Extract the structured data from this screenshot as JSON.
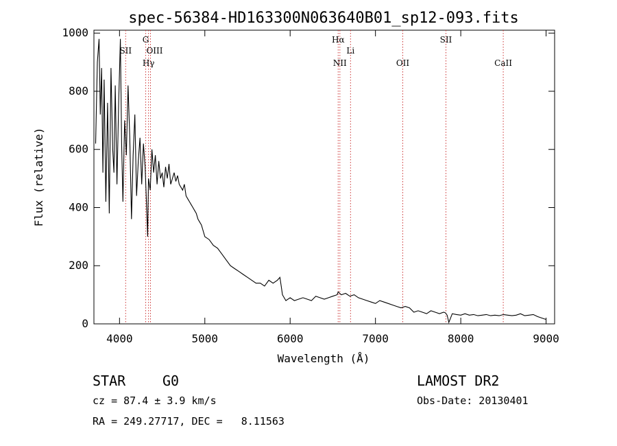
{
  "chart_data": {
    "type": "line",
    "title": "spec-56384-HD163300N063640B01_sp12-093.fits",
    "xlabel": "Wavelength (Å)",
    "ylabel": "Flux (relative)",
    "xlim": [
      3700,
      9100
    ],
    "ylim": [
      0,
      1010
    ],
    "x_ticks": [
      4000,
      5000,
      6000,
      7000,
      8000,
      9000
    ],
    "y_ticks": [
      0,
      200,
      400,
      600,
      800,
      1000
    ],
    "grid": false,
    "line_color": "#000000",
    "marker_line_color": "#cc3333",
    "series": [
      {
        "x": [
          3720,
          3740,
          3760,
          3775,
          3790,
          3805,
          3820,
          3840,
          3860,
          3880,
          3900,
          3920,
          3935,
          3950,
          3970,
          3990,
          4010,
          4025,
          4040,
          4060,
          4080,
          4100,
          4120,
          4140,
          4160,
          4180,
          4200,
          4220,
          4240,
          4260,
          4280,
          4300,
          4320,
          4330,
          4340,
          4360,
          4380,
          4400,
          4420,
          4440,
          4460,
          4480,
          4500,
          4520,
          4540,
          4560,
          4580,
          4600,
          4620,
          4640,
          4660,
          4680,
          4700,
          4720,
          4740,
          4760,
          4780,
          4800,
          4820,
          4840,
          4860,
          4880,
          4900,
          4920,
          4940,
          4960,
          4980,
          5000,
          5050,
          5100,
          5150,
          5200,
          5250,
          5300,
          5350,
          5400,
          5450,
          5500,
          5550,
          5600,
          5650,
          5700,
          5750,
          5800,
          5850,
          5880,
          5895,
          5910,
          5950,
          6000,
          6050,
          6100,
          6150,
          6200,
          6250,
          6300,
          6350,
          6400,
          6450,
          6500,
          6550,
          6563,
          6600,
          6650,
          6700,
          6750,
          6800,
          6850,
          6900,
          6950,
          7000,
          7050,
          7100,
          7150,
          7200,
          7250,
          7300,
          7350,
          7400,
          7450,
          7500,
          7550,
          7600,
          7650,
          7700,
          7750,
          7800,
          7820,
          7840,
          7860,
          7900,
          7950,
          8000,
          8050,
          8100,
          8150,
          8200,
          8250,
          8300,
          8350,
          8400,
          8450,
          8500,
          8550,
          8600,
          8650,
          8700,
          8750,
          8800,
          8850,
          8900,
          8950,
          9000
        ],
        "y": [
          620,
          900,
          980,
          720,
          880,
          520,
          840,
          420,
          760,
          380,
          880,
          600,
          520,
          820,
          480,
          760,
          980,
          620,
          420,
          700,
          580,
          820,
          640,
          360,
          580,
          720,
          440,
          560,
          640,
          480,
          620,
          540,
          380,
          300,
          500,
          460,
          600,
          520,
          580,
          480,
          560,
          500,
          520,
          470,
          540,
          500,
          550,
          480,
          500,
          520,
          490,
          510,
          480,
          470,
          460,
          480,
          440,
          430,
          420,
          410,
          400,
          390,
          380,
          360,
          350,
          340,
          320,
          300,
          290,
          270,
          260,
          240,
          220,
          200,
          190,
          180,
          170,
          160,
          150,
          140,
          140,
          130,
          150,
          140,
          150,
          160,
          130,
          100,
          80,
          90,
          80,
          85,
          90,
          85,
          80,
          95,
          90,
          85,
          90,
          95,
          100,
          110,
          100,
          105,
          95,
          100,
          90,
          85,
          80,
          75,
          70,
          80,
          75,
          70,
          65,
          60,
          55,
          60,
          55,
          40,
          45,
          40,
          35,
          45,
          40,
          35,
          40,
          38,
          30,
          5,
          35,
          32,
          30,
          35,
          30,
          32,
          28,
          30,
          32,
          28,
          30,
          28,
          32,
          30,
          28,
          30,
          35,
          28,
          30,
          32,
          25,
          20,
          15
        ]
      }
    ],
    "lines": [
      {
        "name": "SII",
        "x": 4072
      },
      {
        "name": "G",
        "x": 4307
      },
      {
        "name": "OIII",
        "x": 4363
      },
      {
        "name": "Hγ",
        "x": 4340
      },
      {
        "name": "Hα",
        "x": 6563
      },
      {
        "name": "NII",
        "x": 6583
      },
      {
        "name": "Li",
        "x": 6708
      },
      {
        "name": "OII",
        "x": 7320
      },
      {
        "name": "SII",
        "x": 7826
      },
      {
        "name": "CaII",
        "x": 8498
      }
    ]
  },
  "footer": {
    "obj_class": "STAR",
    "subclass": "G0",
    "cz": "cz = 87.4 ± 3.9 km/s",
    "radec": "RA = 249.27717, DEC =   8.11563",
    "survey": "LAMOST DR2",
    "obsdate": "Obs-Date: 20130401"
  }
}
